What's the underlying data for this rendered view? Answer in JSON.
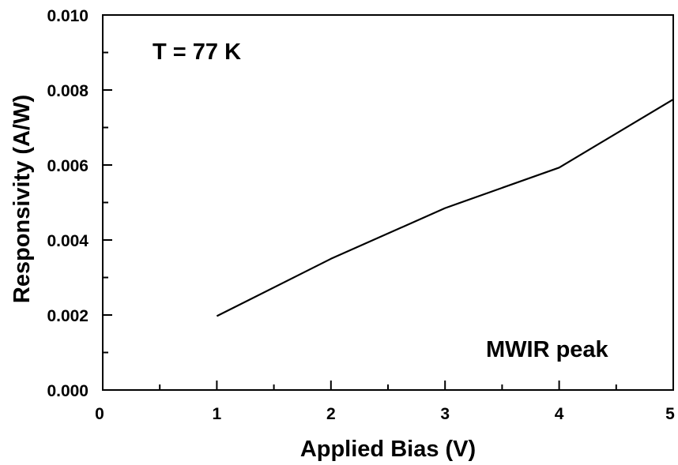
{
  "chart_data": {
    "type": "line",
    "title": "",
    "xlabel": "Applied Bias (V)",
    "ylabel": "Responsivity (A/W)",
    "xlim": [
      0,
      5
    ],
    "ylim": [
      0.0,
      0.01
    ],
    "x_ticks": [
      "0",
      "1",
      "2",
      "3",
      "4",
      "5"
    ],
    "y_ticks": [
      "0.000",
      "0.002",
      "0.004",
      "0.006",
      "0.008",
      "0.010"
    ],
    "grid": false,
    "legend": "none",
    "annotations": [
      "T = 77 K",
      "MWIR peak"
    ],
    "series": [
      {
        "x": [
          1,
          2,
          3,
          4,
          5
        ],
        "values": [
          0.00197,
          0.0035,
          0.00485,
          0.00593,
          0.00775
        ]
      }
    ]
  }
}
